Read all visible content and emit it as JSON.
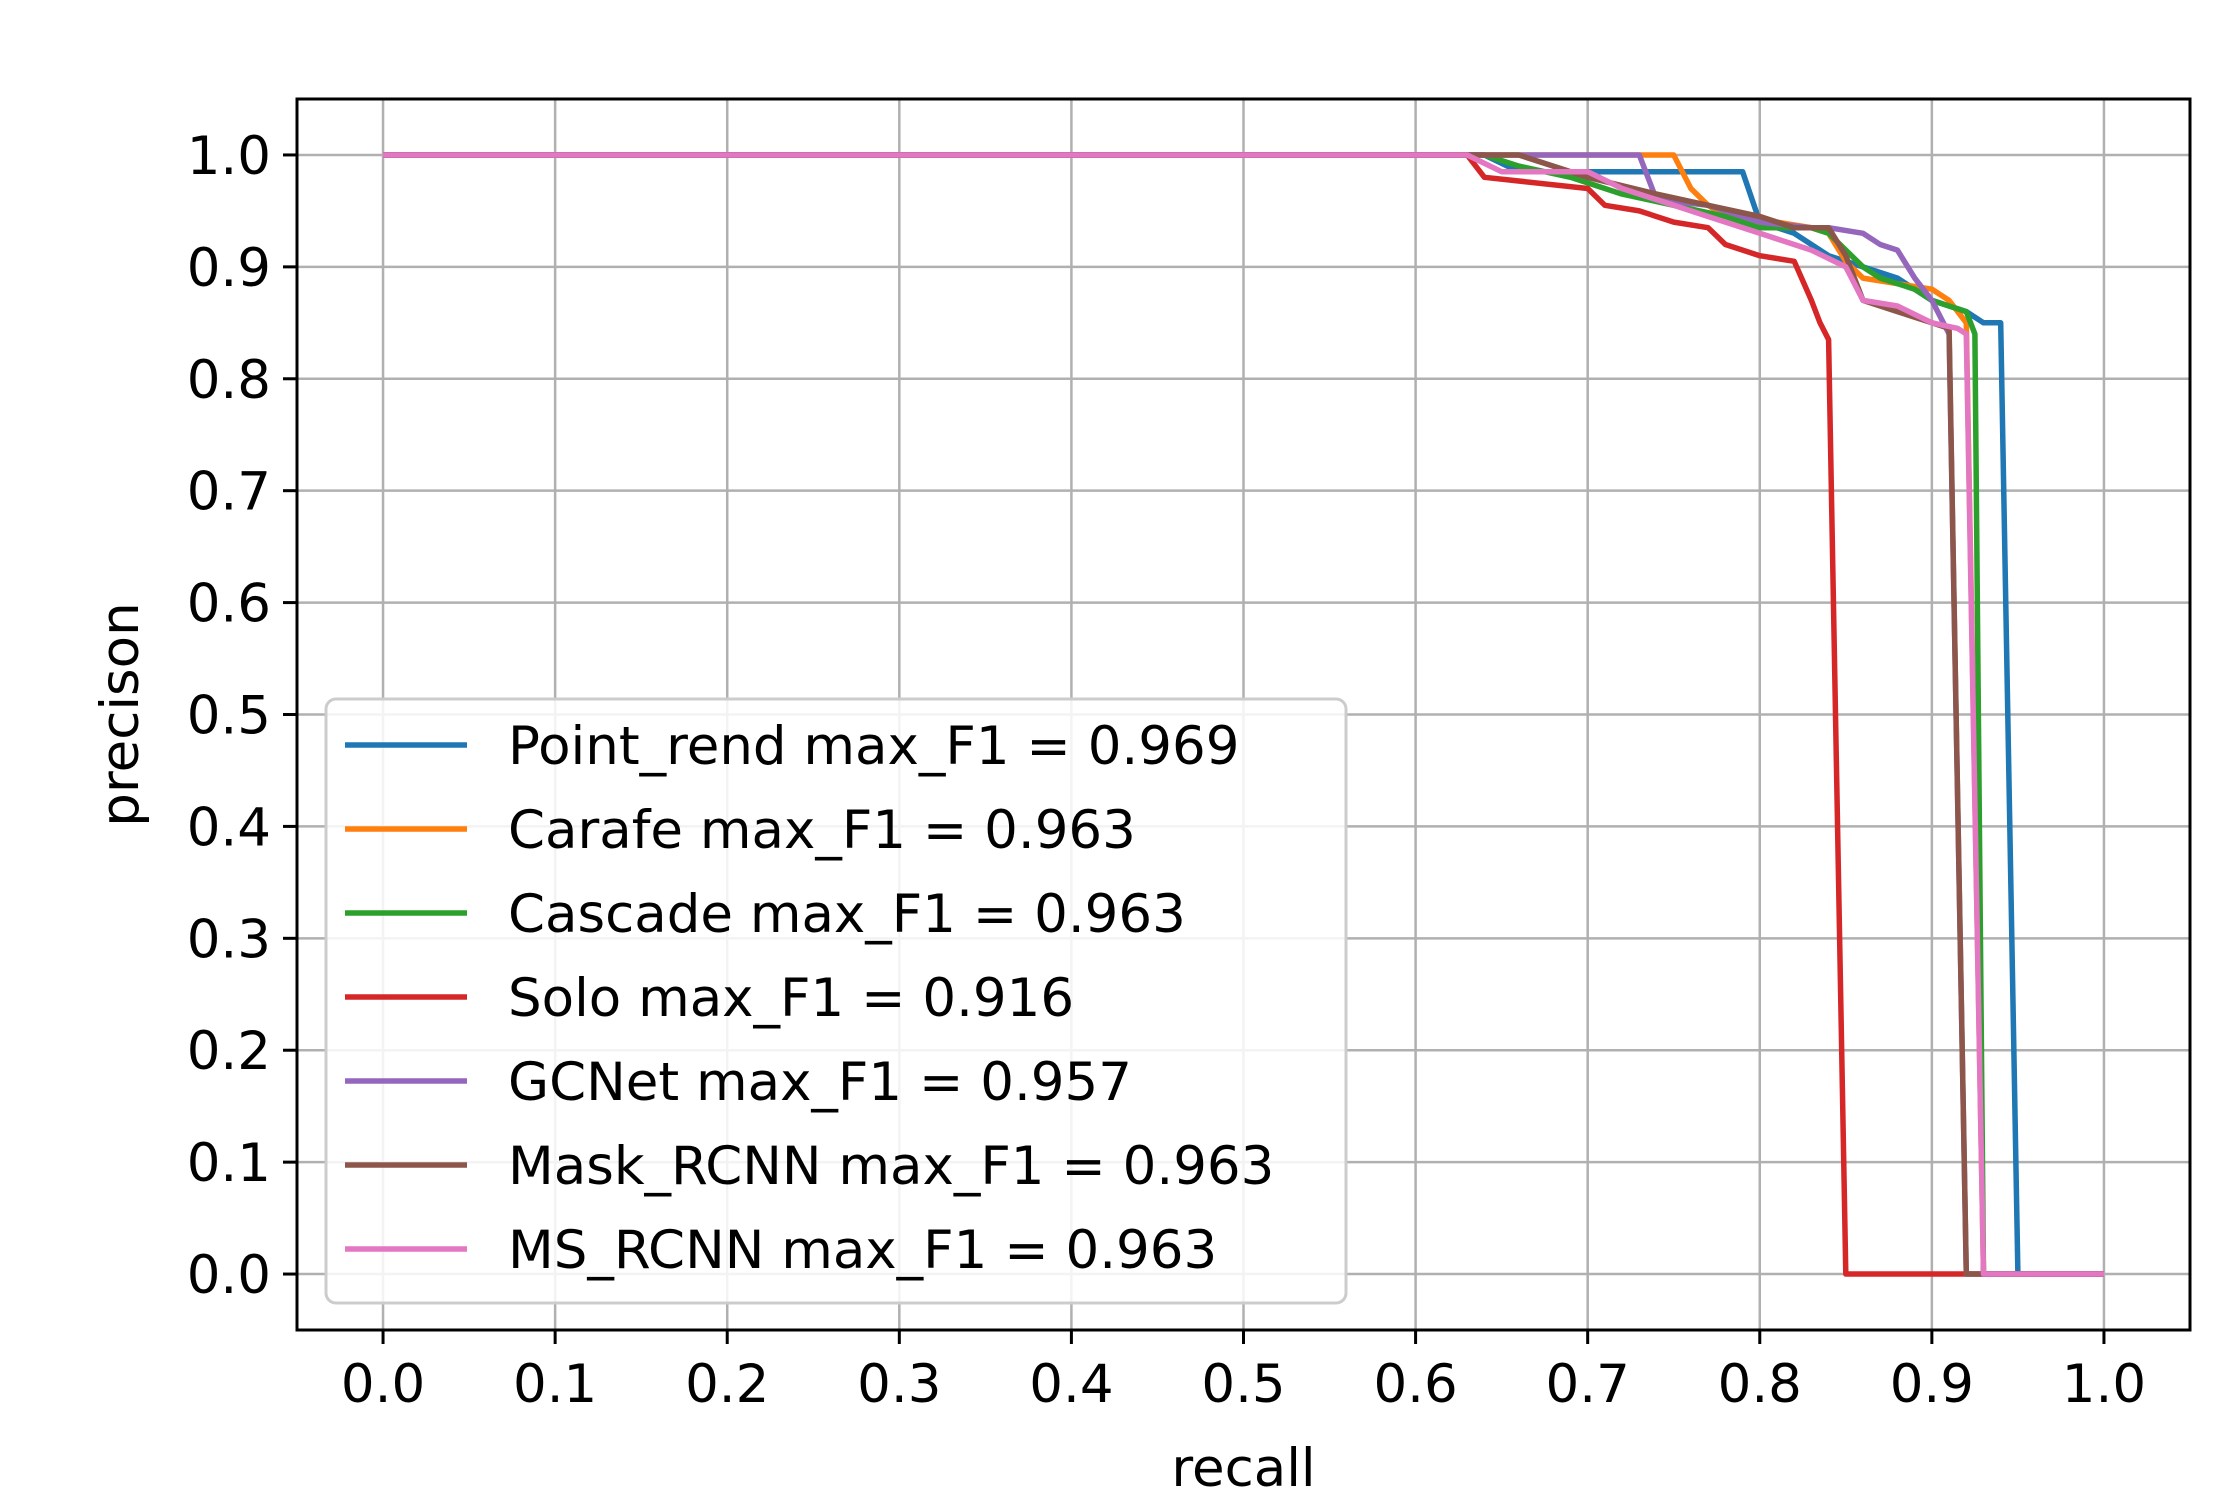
{
  "chart_data": {
    "type": "line",
    "title": "",
    "xlabel": "recall",
    "ylabel": "precison",
    "xlim": [
      -0.05,
      1.05
    ],
    "ylim": [
      -0.05,
      1.05
    ],
    "xticks": [
      "0.0",
      "0.1",
      "0.2",
      "0.3",
      "0.4",
      "0.5",
      "0.6",
      "0.7",
      "0.8",
      "0.9",
      "1.0"
    ],
    "yticks": [
      "0.0",
      "0.1",
      "0.2",
      "0.3",
      "0.4",
      "0.5",
      "0.6",
      "0.7",
      "0.8",
      "0.9",
      "1.0"
    ],
    "grid": true,
    "legend_position": "lower-left",
    "series": [
      {
        "name": "Point_rend max_F1 = 0.969",
        "color": "#1f77b4",
        "x": [
          0.0,
          0.64,
          0.66,
          0.7,
          0.79,
          0.8,
          0.82,
          0.84,
          0.86,
          0.88,
          0.9,
          0.92,
          0.93,
          0.94,
          0.95,
          0.95,
          1.0
        ],
        "y": [
          1.0,
          1.0,
          0.985,
          0.985,
          0.985,
          0.94,
          0.93,
          0.91,
          0.9,
          0.89,
          0.87,
          0.86,
          0.85,
          0.85,
          0.0,
          0.0,
          0.0
        ]
      },
      {
        "name": "Carafe max_F1 = 0.963",
        "color": "#ff7f0e",
        "x": [
          0.0,
          0.73,
          0.75,
          0.76,
          0.77,
          0.78,
          0.8,
          0.81,
          0.83,
          0.84,
          0.85,
          0.86,
          0.88,
          0.9,
          0.91,
          0.92,
          0.93,
          1.0
        ],
        "y": [
          1.0,
          1.0,
          1.0,
          0.97,
          0.955,
          0.945,
          0.945,
          0.94,
          0.935,
          0.93,
          0.905,
          0.89,
          0.885,
          0.88,
          0.87,
          0.85,
          0.0,
          0.0
        ]
      },
      {
        "name": "Cascade max_F1 = 0.963",
        "color": "#2ca02c",
        "x": [
          0.0,
          0.64,
          0.66,
          0.69,
          0.72,
          0.75,
          0.78,
          0.8,
          0.83,
          0.84,
          0.86,
          0.87,
          0.89,
          0.9,
          0.92,
          0.925,
          0.93,
          1.0
        ],
        "y": [
          1.0,
          1.0,
          0.99,
          0.98,
          0.965,
          0.955,
          0.945,
          0.935,
          0.935,
          0.93,
          0.9,
          0.89,
          0.88,
          0.87,
          0.86,
          0.84,
          0.0,
          0.0
        ]
      },
      {
        "name": "Solo max_F1 = 0.916",
        "color": "#d62728",
        "x": [
          0.0,
          0.63,
          0.64,
          0.7,
          0.71,
          0.73,
          0.75,
          0.77,
          0.78,
          0.8,
          0.82,
          0.83,
          0.835,
          0.84,
          0.85,
          0.92,
          1.0
        ],
        "y": [
          1.0,
          1.0,
          0.98,
          0.97,
          0.955,
          0.95,
          0.94,
          0.935,
          0.92,
          0.91,
          0.905,
          0.87,
          0.85,
          0.835,
          0.0,
          0.0,
          0.0
        ]
      },
      {
        "name": "GCNet max_F1 = 0.957",
        "color": "#9467bd",
        "x": [
          0.0,
          0.66,
          0.73,
          0.74,
          0.77,
          0.8,
          0.83,
          0.84,
          0.86,
          0.87,
          0.88,
          0.89,
          0.9,
          0.91,
          0.92,
          1.0
        ],
        "y": [
          1.0,
          1.0,
          1.0,
          0.96,
          0.955,
          0.94,
          0.935,
          0.935,
          0.93,
          0.92,
          0.915,
          0.89,
          0.87,
          0.84,
          0.0,
          0.0
        ]
      },
      {
        "name": "Mask_RCNN max_F1 = 0.963",
        "color": "#8c564b",
        "x": [
          0.0,
          0.64,
          0.66,
          0.7,
          0.74,
          0.77,
          0.8,
          0.82,
          0.84,
          0.85,
          0.86,
          0.88,
          0.9,
          0.91,
          0.92,
          1.0
        ],
        "y": [
          1.0,
          1.0,
          1.0,
          0.98,
          0.965,
          0.955,
          0.945,
          0.935,
          0.935,
          0.91,
          0.87,
          0.86,
          0.85,
          0.845,
          0.0,
          0.0
        ]
      },
      {
        "name": "MS_RCNN max_F1 = 0.963",
        "color": "#e377c2",
        "x": [
          0.0,
          0.63,
          0.65,
          0.7,
          0.72,
          0.75,
          0.77,
          0.8,
          0.83,
          0.85,
          0.86,
          0.88,
          0.9,
          0.915,
          0.92,
          0.93,
          1.0
        ],
        "y": [
          1.0,
          1.0,
          0.985,
          0.985,
          0.97,
          0.955,
          0.945,
          0.93,
          0.915,
          0.9,
          0.87,
          0.865,
          0.85,
          0.845,
          0.84,
          0.0,
          0.0
        ]
      }
    ]
  }
}
